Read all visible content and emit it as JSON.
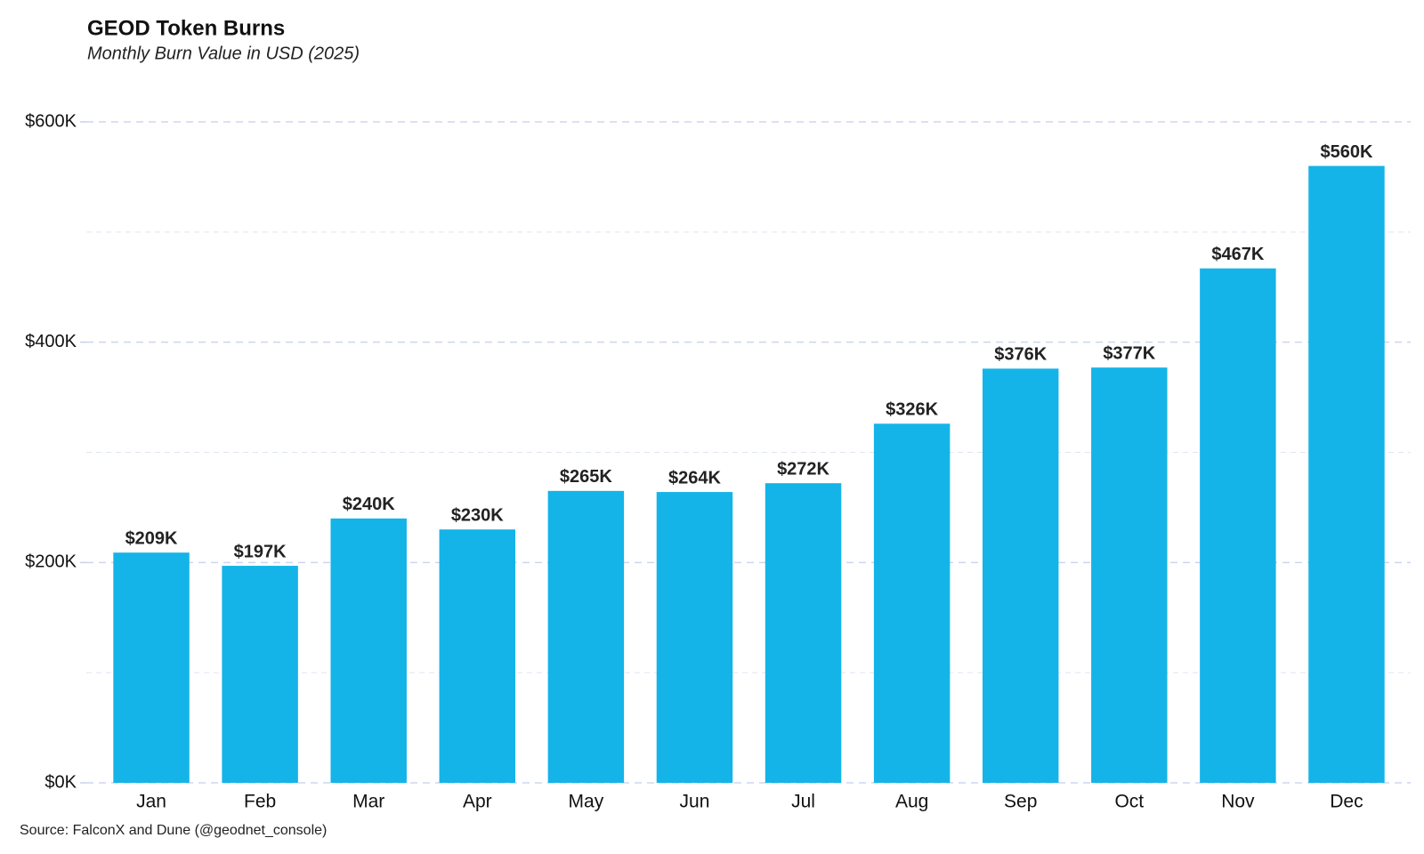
{
  "chart_data": {
    "type": "bar",
    "title": "GEOD Token Burns",
    "subtitle": "Monthly Burn Value in USD (2025)",
    "source": "Source: FalconX and Dune (@geodnet_console)",
    "categories": [
      "Jan",
      "Feb",
      "Mar",
      "Apr",
      "May",
      "Jun",
      "Jul",
      "Aug",
      "Sep",
      "Oct",
      "Nov",
      "Dec"
    ],
    "values": [
      209000,
      197000,
      240000,
      230000,
      265000,
      264000,
      272000,
      326000,
      376000,
      377000,
      467000,
      560000
    ],
    "value_labels": [
      "$209K",
      "$197K",
      "$240K",
      "$230K",
      "$265K",
      "$264K",
      "$272K",
      "$326K",
      "$376K",
      "$377K",
      "$467K",
      "$560K"
    ],
    "color": "#14b4e8",
    "ylim": [
      0,
      600000
    ],
    "yticks": [
      {
        "value": 0,
        "label": "$0K"
      },
      {
        "value": 200000,
        "label": "$200K"
      },
      {
        "value": 400000,
        "label": "$400K"
      },
      {
        "value": 600000,
        "label": "$600K"
      }
    ],
    "minor_gridlines": [
      100000,
      300000,
      500000
    ],
    "grid": true
  }
}
